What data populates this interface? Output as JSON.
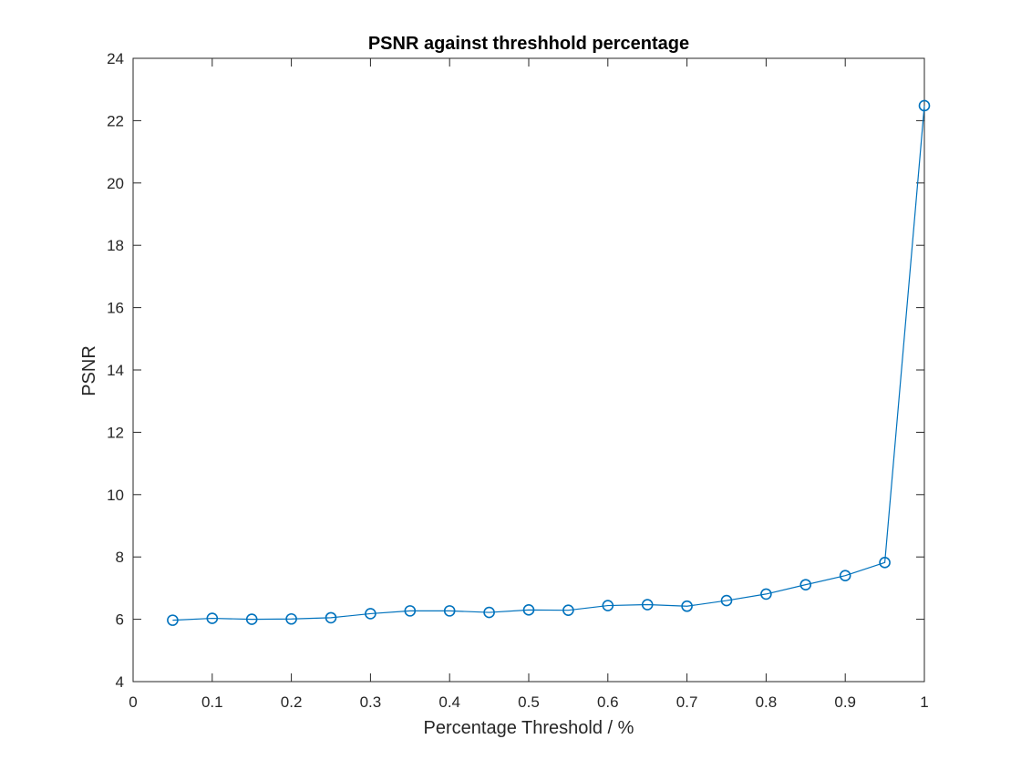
{
  "chart_data": {
    "type": "line",
    "title": "PSNR against threshhold percentage",
    "xlabel": "Percentage Threshold / %",
    "ylabel": "PSNR",
    "xlim": [
      0,
      1
    ],
    "ylim": [
      4,
      24
    ],
    "xticks": [
      0,
      0.1,
      0.2,
      0.3,
      0.4,
      0.5,
      0.6,
      0.7,
      0.8,
      0.9,
      1
    ],
    "xtick_labels": [
      "0",
      "0.1",
      "0.2",
      "0.3",
      "0.4",
      "0.5",
      "0.6",
      "0.7",
      "0.8",
      "0.9",
      "1"
    ],
    "yticks": [
      4,
      6,
      8,
      10,
      12,
      14,
      16,
      18,
      20,
      22,
      24
    ],
    "ytick_labels": [
      "4",
      "6",
      "8",
      "10",
      "12",
      "14",
      "16",
      "18",
      "20",
      "22",
      "24"
    ],
    "grid": false,
    "marker": "circle",
    "line_color": "#0072BD",
    "series": [
      {
        "x": [
          0.05,
          0.1,
          0.15,
          0.2,
          0.25,
          0.3,
          0.35,
          0.4,
          0.45,
          0.5,
          0.55,
          0.6,
          0.65,
          0.7,
          0.75,
          0.8,
          0.85,
          0.9,
          0.95,
          1.0
        ],
        "y": [
          5.97,
          6.03,
          6.0,
          6.01,
          6.05,
          6.18,
          6.27,
          6.27,
          6.22,
          6.3,
          6.29,
          6.44,
          6.47,
          6.42,
          6.6,
          6.81,
          7.11,
          7.4,
          7.82,
          22.48
        ]
      }
    ]
  }
}
